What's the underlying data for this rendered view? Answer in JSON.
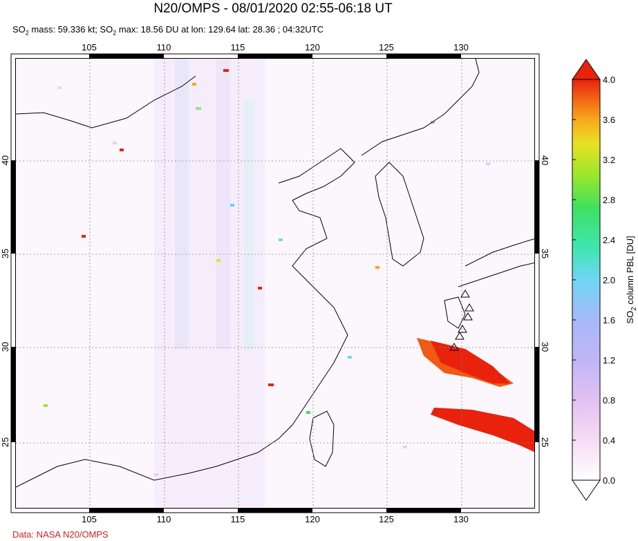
{
  "header": {
    "title": "N20/OMPS - 08/01/2020 02:55-06:18 UT",
    "subtitle_parts": [
      "SO",
      "2",
      " mass: 59.336 kt; SO",
      "2",
      " max: 18.56 DU at lon: 129.64 lat: 28.36 ; 04:32UTC"
    ]
  },
  "map": {
    "lon_ticks": [
      "105",
      "110",
      "115",
      "120",
      "125",
      "130"
    ],
    "lat_ticks": [
      "40",
      "35",
      "30",
      "25"
    ],
    "lon_range": [
      100.5,
      135.5
    ],
    "lat_range": [
      20.5,
      44.5
    ],
    "volcano_markers": "triangle"
  },
  "colorbar": {
    "ticks": [
      "4.0",
      "3.6",
      "3.2",
      "2.8",
      "2.4",
      "2.0",
      "1.6",
      "1.2",
      "0.8",
      "0.4",
      "0.0"
    ],
    "title_parts": [
      "SO",
      "2",
      " column PBL [DU]"
    ],
    "colors": [
      "#ffffff",
      "#f2c8f0",
      "#d7b4f5",
      "#a6b8f8",
      "#70d6f5",
      "#3ee6b0",
      "#40e060",
      "#9ae62c",
      "#e8e224",
      "#f8a71c",
      "#f05a14",
      "#e8220c"
    ]
  },
  "footer": {
    "credit": "Data: NASA N20/OMPS"
  }
}
